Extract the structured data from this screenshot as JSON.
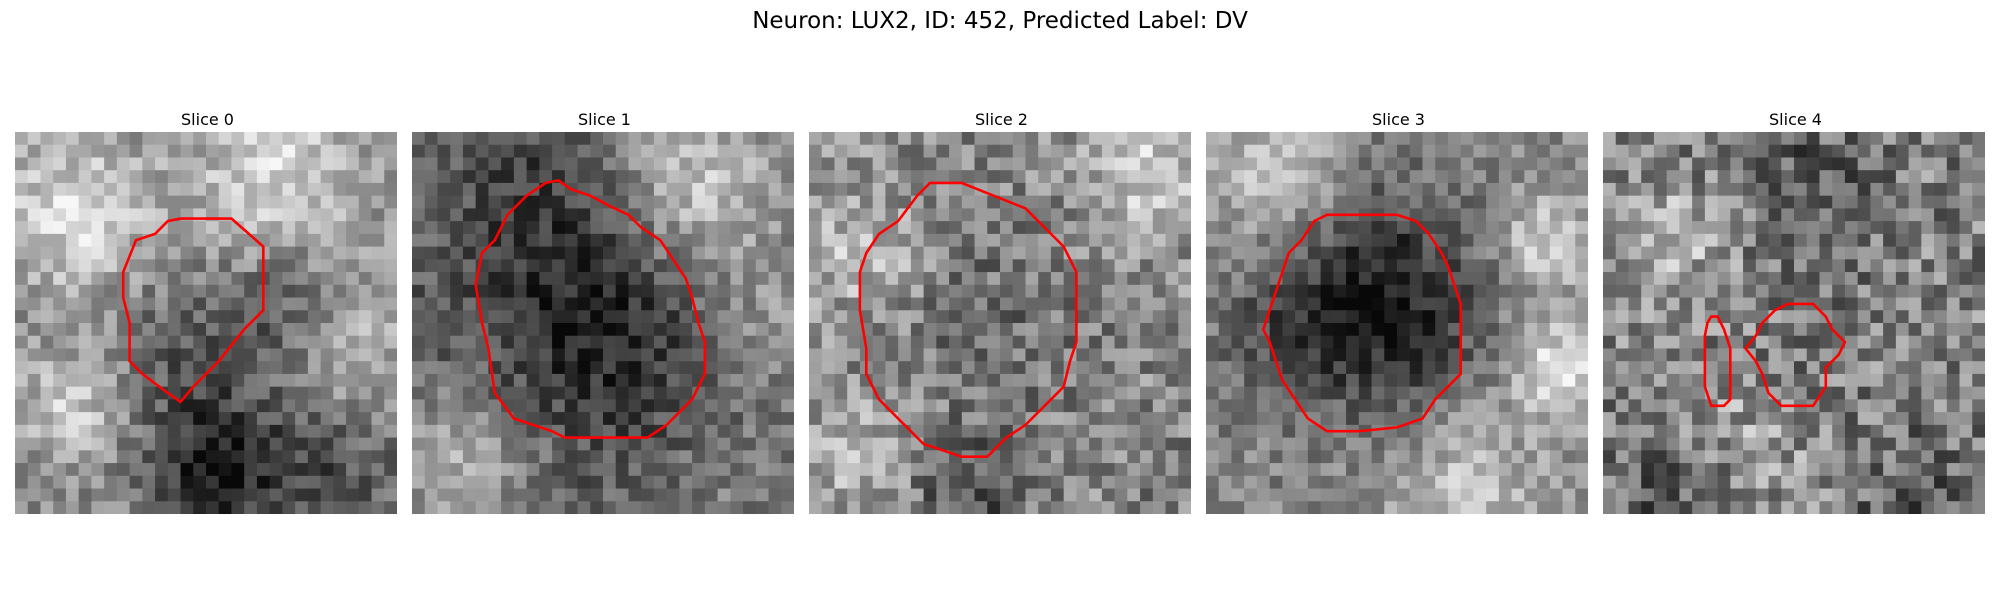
{
  "figure": {
    "title": "Neuron: LUX2, ID: 452, Predicted Label: DV",
    "contour_color": "#ff0000",
    "colormap": "gray",
    "grid_size": 30,
    "slices": [
      {
        "title": "Slice 0"
      },
      {
        "title": "Slice 1"
      },
      {
        "title": "Slice 2"
      },
      {
        "title": "Slice 3"
      },
      {
        "title": "Slice 4"
      }
    ]
  }
}
